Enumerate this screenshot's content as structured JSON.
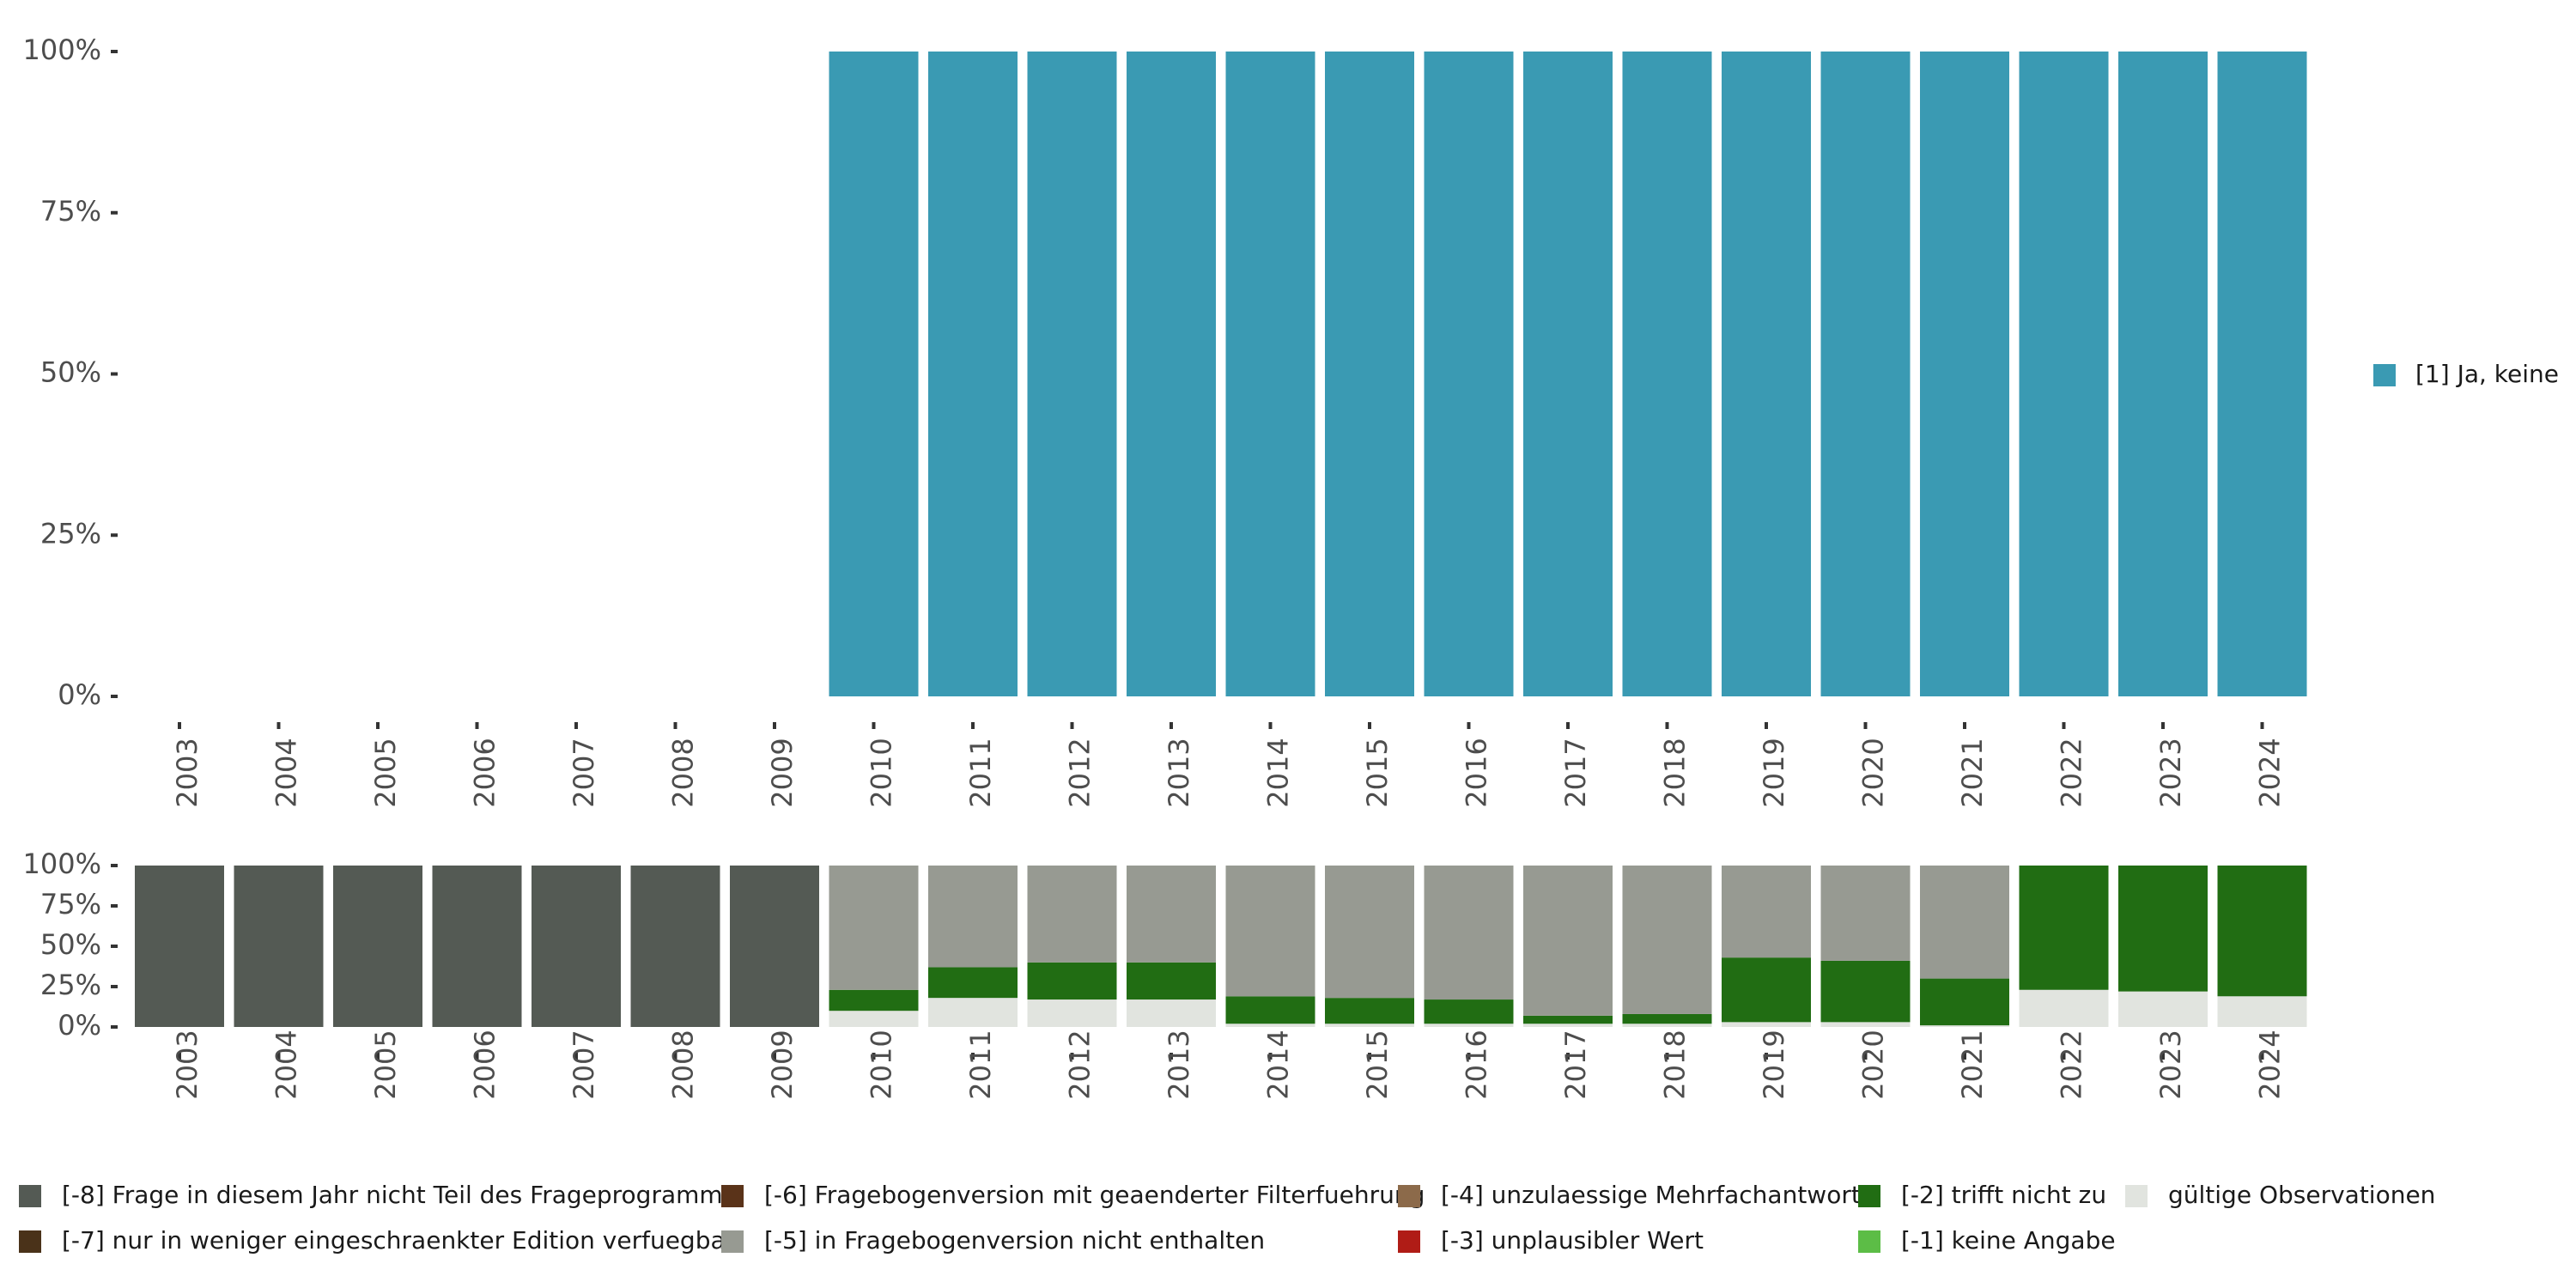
{
  "chart_data": [
    {
      "type": "bar",
      "stacked": true,
      "categories": [
        "2003",
        "2004",
        "2005",
        "2006",
        "2007",
        "2008",
        "2009",
        "2010",
        "2011",
        "2012",
        "2013",
        "2014",
        "2015",
        "2016",
        "2017",
        "2018",
        "2019",
        "2020",
        "2021",
        "2022",
        "2023",
        "2024"
      ],
      "ylim": [
        0,
        100
      ],
      "yticks": [
        "0%",
        "25%",
        "50%",
        "75%",
        "100%"
      ],
      "series": [
        {
          "name": "[1] Ja, keine",
          "color": "#3a9ab3",
          "values": [
            0,
            0,
            0,
            0,
            0,
            0,
            0,
            100,
            100,
            100,
            100,
            100,
            100,
            100,
            100,
            100,
            100,
            100,
            100,
            100,
            100,
            100
          ]
        }
      ],
      "legend": {
        "position": "right"
      }
    },
    {
      "type": "bar",
      "stacked": true,
      "categories": [
        "2003",
        "2004",
        "2005",
        "2006",
        "2007",
        "2008",
        "2009",
        "2010",
        "2011",
        "2012",
        "2013",
        "2014",
        "2015",
        "2016",
        "2017",
        "2018",
        "2019",
        "2020",
        "2021",
        "2022",
        "2023",
        "2024"
      ],
      "ylim": [
        0,
        100
      ],
      "yticks": [
        "0%",
        "25%",
        "50%",
        "75%",
        "100%"
      ],
      "series": [
        {
          "name": "gültige Observationen",
          "color": "#e1e4df",
          "values": [
            0,
            0,
            0,
            0,
            0,
            0,
            0,
            10,
            18,
            17,
            17,
            2,
            2,
            2,
            2,
            2,
            3,
            3,
            1,
            23,
            22,
            19
          ]
        },
        {
          "name": "[-2] trifft nicht zu",
          "color": "#216d13",
          "values": [
            0,
            0,
            0,
            0,
            0,
            0,
            0,
            13,
            19,
            23,
            23,
            17,
            16,
            15,
            5,
            6,
            40,
            38,
            29,
            77,
            78,
            81
          ]
        },
        {
          "name": "[-5] in Fragebogenversion nicht enthalten",
          "color": "#979a92",
          "values": [
            0,
            0,
            0,
            0,
            0,
            0,
            0,
            77,
            63,
            60,
            60,
            81,
            82,
            83,
            93,
            92,
            57,
            59,
            70,
            0,
            0,
            0
          ]
        },
        {
          "name": "[-8] Frage in diesem Jahr nicht Teil des Frageprogramms",
          "color": "#545a54",
          "values": [
            100,
            100,
            100,
            100,
            100,
            100,
            100,
            0,
            0,
            0,
            0,
            0,
            0,
            0,
            0,
            0,
            0,
            0,
            0,
            0,
            0,
            0
          ]
        }
      ],
      "legend": {
        "position": "bottom"
      }
    }
  ],
  "legend_items": [
    {
      "label": "[-8] Frage in diesem Jahr nicht Teil des Frageprogramms",
      "color": "#545a54"
    },
    {
      "label": "[-7] nur in weniger eingeschraenkter Edition verfuegbar",
      "color": "#4a3219"
    },
    {
      "label": "[-6] Fragebogenversion mit geaenderter Filterfuehrung",
      "color": "#5a3319"
    },
    {
      "label": "[-5] in Fragebogenversion nicht enthalten",
      "color": "#979a92"
    },
    {
      "label": "[-4] unzulaessige Mehrfachantwort",
      "color": "#8c6a4a"
    },
    {
      "label": "[-3] unplausibler Wert",
      "color": "#b01c16"
    },
    {
      "label": "[-2] trifft nicht zu",
      "color": "#216d13"
    },
    {
      "label": "[-1] keine Angabe",
      "color": "#5cbd46"
    },
    {
      "label": "gültige Observationen",
      "color": "#e1e4df"
    }
  ]
}
